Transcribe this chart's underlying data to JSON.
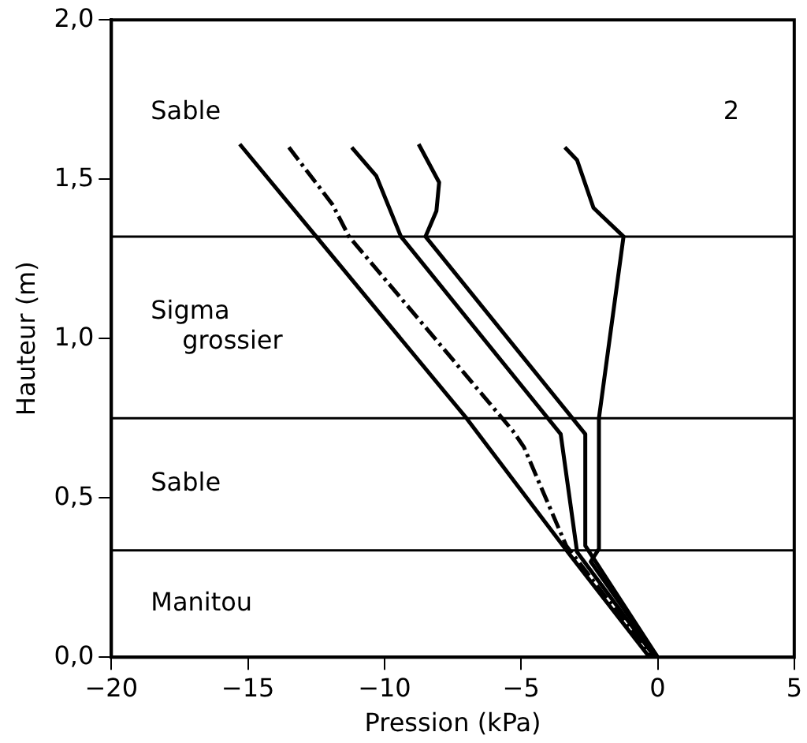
{
  "chart_data": {
    "type": "line",
    "xlabel": "Pression (kPa)",
    "ylabel": "Hauteur (m)",
    "xlim": [
      -20,
      5
    ],
    "xticks": [
      {
        "value": -20,
        "label": "−20"
      },
      {
        "value": -15,
        "label": "−15"
      },
      {
        "value": -10,
        "label": "−10"
      },
      {
        "value": -5,
        "label": "−5"
      },
      0,
      5
    ],
    "ylim": [
      0,
      2
    ],
    "yticks": [
      {
        "value": 0,
        "label": "0,0"
      },
      {
        "value": 0.5,
        "label": "0,5"
      },
      {
        "value": 1,
        "label": "1,0"
      },
      {
        "value": 1.5,
        "label": "1,5"
      },
      {
        "value": 2,
        "label": "2,0"
      }
    ],
    "grid": false,
    "legend": false,
    "marker": "none",
    "series": [
      {
        "color": "#000000",
        "line_style": "solid",
        "x": [
          -15.3,
          -12.5,
          -7.0,
          -3.2,
          -0.3
        ],
        "values": [
          1.61,
          1.32,
          0.75,
          0.32,
          0
        ]
      },
      {
        "color": "#000000",
        "line_style": "dashed",
        "x": [
          -13.5,
          -11.9,
          -11.3,
          -5.3,
          -4.9,
          -3.35,
          -0.2
        ],
        "values": [
          1.6,
          1.42,
          1.32,
          0.71,
          0.66,
          0.35,
          0
        ]
      },
      {
        "color": "#000000",
        "line_style": "solid",
        "x": [
          -11.2,
          -10.3,
          -9.4,
          -3.55,
          -2.95,
          -0.1
        ],
        "values": [
          1.6,
          1.51,
          1.32,
          0.7,
          0.33,
          0
        ]
      },
      {
        "color": "#000000",
        "line_style": "solid",
        "x": [
          -8.75,
          -8.0,
          -8.1,
          -8.5,
          -2.65,
          -2.65,
          0
        ],
        "values": [
          1.61,
          1.49,
          1.4,
          1.32,
          0.7,
          0.35,
          0
        ]
      },
      {
        "color": "#000000",
        "line_style": "solid",
        "x": [
          -3.4,
          -2.95,
          -2.35,
          -1.25,
          -2.15,
          -2.15,
          -2.45,
          0
        ],
        "values": [
          1.6,
          1.56,
          1.41,
          1.32,
          0.75,
          0.34,
          0.3,
          0
        ]
      }
    ],
    "ref_lines": [
      {
        "axis": "y",
        "value": 1.32
      },
      {
        "axis": "y",
        "value": 0.75
      },
      {
        "axis": "y",
        "value": 0.335
      }
    ],
    "annotations": [
      "Sable",
      "Sigma\ngrossier",
      "Sable",
      "Manitou",
      "2"
    ]
  }
}
